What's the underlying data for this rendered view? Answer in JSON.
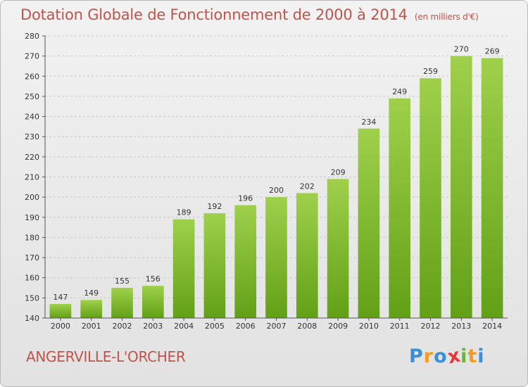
{
  "chart_data": {
    "type": "bar",
    "title": "Dotation Globale de Fonctionnement de 2000 à 2014",
    "subtitle": "(en milliers d'€)",
    "categories": [
      "2000",
      "2001",
      "2002",
      "2003",
      "2004",
      "2005",
      "2006",
      "2007",
      "2008",
      "2009",
      "2010",
      "2011",
      "2012",
      "2013",
      "2014"
    ],
    "values": [
      147,
      149,
      155,
      156,
      189,
      192,
      196,
      200,
      202,
      209,
      234,
      249,
      259,
      270,
      269
    ],
    "ylim": [
      140,
      280
    ],
    "yticks": [
      140,
      150,
      160,
      170,
      180,
      190,
      200,
      210,
      220,
      230,
      240,
      250,
      260,
      270,
      280
    ],
    "xlabel": "",
    "ylabel": "",
    "grid": true,
    "bar_color_top": "#9fd04c",
    "bar_color_bottom": "#62a017",
    "title_color": "#c0534a"
  },
  "footer": {
    "commune": "ANGERVILLE-L'ORCHER",
    "logo_letters": [
      "P",
      "r",
      "o",
      "x",
      "i",
      "t",
      "i"
    ],
    "logo_colors": [
      "#3a8fd6",
      "#f29b1f",
      "#3a8fd6",
      "#e23b3b",
      "#6cb33f",
      "#f29b1f",
      "#3a8fd6"
    ]
  }
}
